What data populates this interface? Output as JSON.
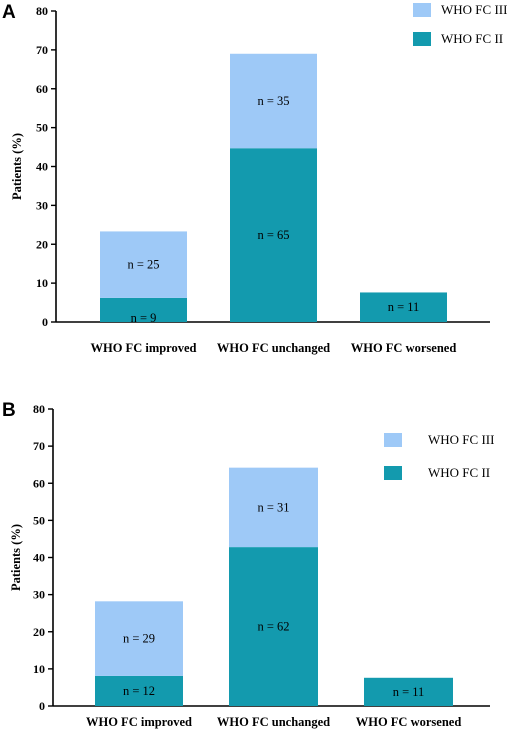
{
  "chart_data": [
    {
      "panel": "A",
      "type": "bar",
      "stacked": true,
      "categories": [
        "WHO FC improved",
        "WHO FC unchanged",
        "WHO FC worsened"
      ],
      "ylabel": "Patients (%)",
      "ylim": [
        0,
        80
      ],
      "yticks": [
        0,
        10,
        20,
        30,
        40,
        50,
        60,
        70,
        80
      ],
      "series": [
        {
          "name": "WHO FC II",
          "color": "#139aae",
          "values": [
            6.2,
            44.7,
            7.6
          ],
          "labels": [
            "n = 9",
            "n = 65",
            "n = 11"
          ]
        },
        {
          "name": "WHO FC III",
          "color": "#9ec9f7",
          "values": [
            17.1,
            24.3,
            0
          ],
          "labels": [
            "n = 25",
            "n = 35",
            ""
          ]
        }
      ],
      "legend": [
        {
          "name": "WHO FC III",
          "color": "#9ec9f7"
        },
        {
          "name": "WHO FC II",
          "color": "#139aae"
        }
      ],
      "legend_position": "top-right"
    },
    {
      "panel": "B",
      "type": "bar",
      "stacked": true,
      "categories": [
        "WHO FC improved",
        "WHO FC unchanged",
        "WHO FC worsened"
      ],
      "ylabel": "Patients (%)",
      "ylim": [
        0,
        80
      ],
      "yticks": [
        0,
        10,
        20,
        30,
        40,
        50,
        60,
        70,
        80
      ],
      "series": [
        {
          "name": "WHO FC II",
          "color": "#139aae",
          "values": [
            8.1,
            42.8,
            7.6
          ],
          "labels": [
            "n = 12",
            "n = 62",
            "n = 11"
          ]
        },
        {
          "name": "WHO FC III",
          "color": "#9ec9f7",
          "values": [
            20.1,
            21.4,
            0
          ],
          "labels": [
            "n = 29",
            "n = 31",
            ""
          ]
        }
      ],
      "legend": [
        {
          "name": "WHO FC III",
          "color": "#9ec9f7"
        },
        {
          "name": "WHO FC II",
          "color": "#139aae"
        }
      ],
      "legend_position": "top-right"
    }
  ]
}
